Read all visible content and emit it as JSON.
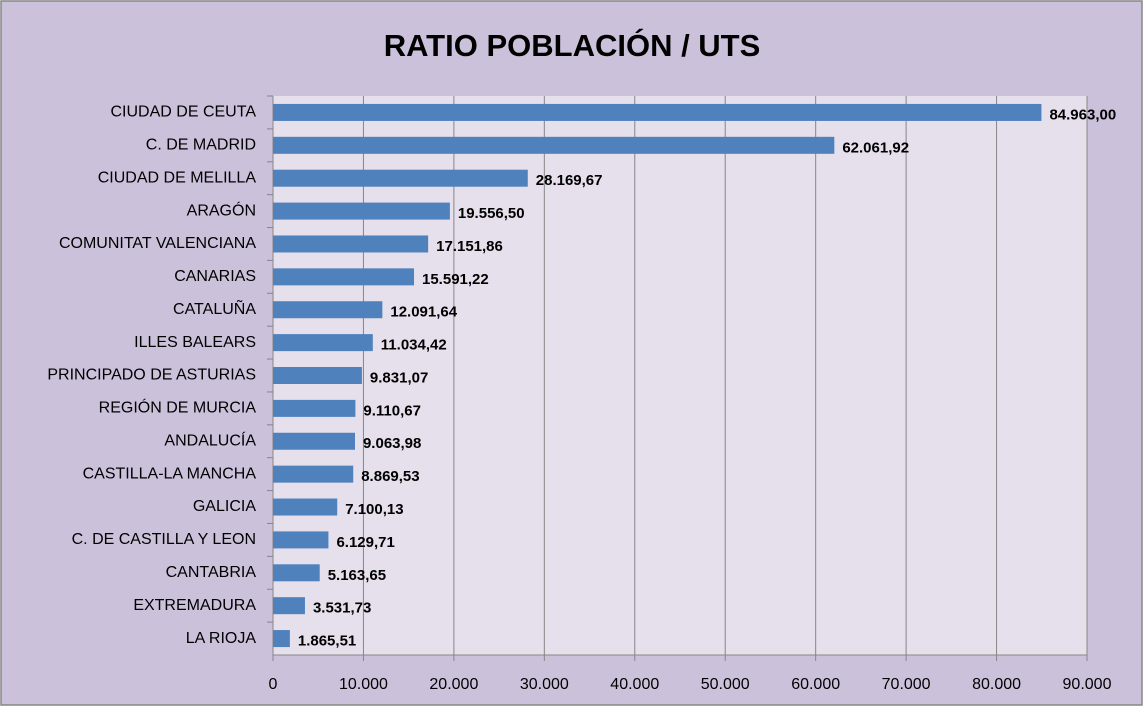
{
  "chart_data": {
    "type": "hbar",
    "title": "RATIO POBLACIÓN / UTS",
    "categories": [
      "CIUDAD DE CEUTA",
      "C. DE MADRID",
      "CIUDAD DE MELILLA",
      "ARAGÓN",
      "COMUNITAT VALENCIANA",
      "CANARIAS",
      "CATALUÑA",
      "ILLES BALEARS",
      "PRINCIPADO DE ASTURIAS",
      "REGIÓN DE MURCIA",
      "ANDALUCÍA",
      "CASTILLA-LA MANCHA",
      "GALICIA",
      "C. DE CASTILLA Y LEON",
      "CANTABRIA",
      "EXTREMADURA",
      "LA RIOJA"
    ],
    "values": [
      84963.0,
      62061.92,
      28169.67,
      19556.5,
      17151.86,
      15591.22,
      12091.64,
      11034.42,
      9831.07,
      9110.67,
      9063.98,
      8869.53,
      7100.13,
      6129.71,
      5163.65,
      3531.73,
      1865.51
    ],
    "value_labels": [
      "84.963,00",
      "62.061,92",
      "28.169,67",
      "19.556,50",
      "17.151,86",
      "15.591,22",
      "12.091,64",
      "11.034,42",
      "9.831,07",
      "9.110,67",
      "9.063,98",
      "8.869,53",
      "7.100,13",
      "6.129,71",
      "5.163,65",
      "3.531,73",
      "1.865,51"
    ],
    "color": "#4f81bd",
    "xlim": [
      0,
      90000
    ],
    "xticks": [
      0,
      {
        "value": 10000,
        "label": "10.000"
      },
      {
        "value": 20000,
        "label": "20.000"
      },
      {
        "value": 30000,
        "label": "30.000"
      },
      {
        "value": 40000,
        "label": "40.000"
      },
      {
        "value": 50000,
        "label": "50.000"
      },
      {
        "value": 60000,
        "label": "60.000"
      },
      {
        "value": 70000,
        "label": "70.000"
      },
      {
        "value": 80000,
        "label": "80.000"
      },
      {
        "value": 90000,
        "label": "90.000"
      }
    ],
    "grid": true
  }
}
